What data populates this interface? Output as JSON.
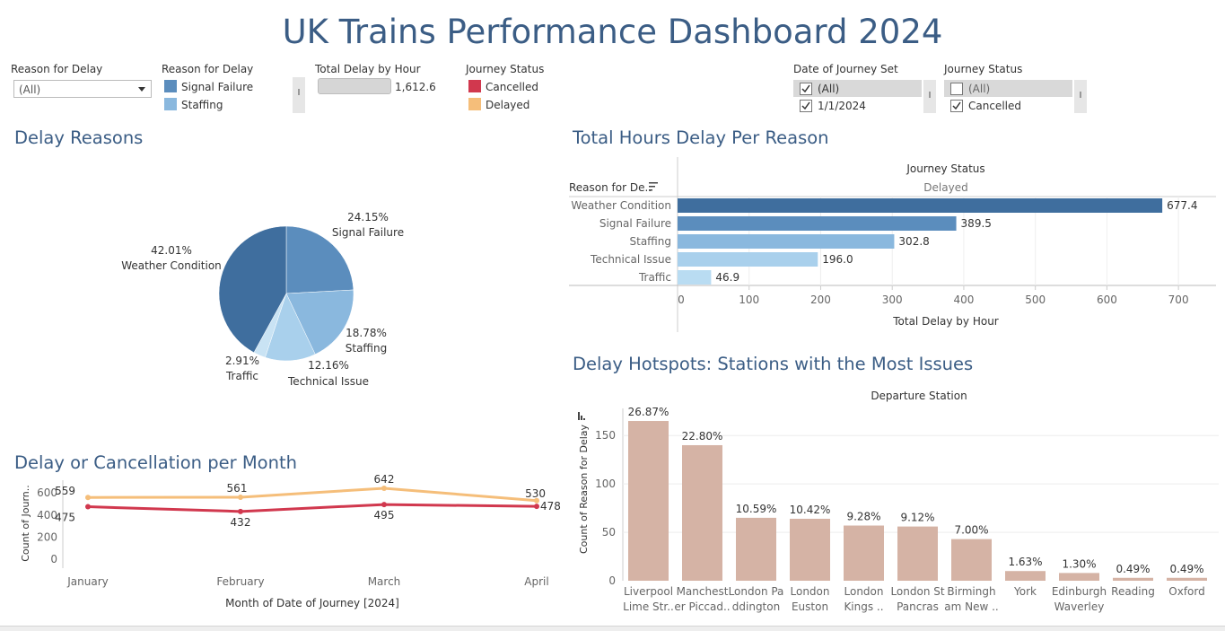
{
  "title": "UK Trains Performance Dashboard 2024",
  "filters": {
    "reason_filter": {
      "label": "Reason for Delay",
      "value": "(All)"
    },
    "reason_legend": {
      "label": "Reason for Delay",
      "items": [
        "Signal Failure",
        "Staffing"
      ],
      "colors": [
        "#5b8dbd",
        "#8ab8de"
      ]
    },
    "total_delay": {
      "label": "Total Delay by Hour",
      "value": "1,612.6"
    },
    "journey_status_legend": {
      "label": "Journey Status",
      "items": [
        "Cancelled",
        "Delayed"
      ],
      "colors": [
        "#d1384e",
        "#f5be7a"
      ]
    },
    "date_set": {
      "label": "Date of Journey Set",
      "options": [
        {
          "label": "(All)",
          "checked": true
        },
        {
          "label": "1/1/2024",
          "checked": true
        }
      ]
    },
    "journey_status_filter": {
      "label": "Journey Status",
      "options": [
        {
          "label": "(All)",
          "checked": false
        },
        {
          "label": "Cancelled",
          "checked": true
        }
      ]
    }
  },
  "sections": {
    "delay_reasons": "Delay Reasons",
    "hours_per_reason": "Total Hours Delay Per Reason",
    "per_month": "Delay or Cancellation per Month",
    "hotspots": "Delay Hotspots: Stations with the Most Issues"
  },
  "chart_data": [
    {
      "type": "pie",
      "title": "Delay Reasons",
      "slices": [
        {
          "label": "Signal Failure",
          "value": 24.15,
          "value_label": "24.15%",
          "color": "#5b8dbd"
        },
        {
          "label": "Staffing",
          "value": 18.78,
          "value_label": "18.78%",
          "color": "#8ab8de"
        },
        {
          "label": "Technical Issue",
          "value": 12.16,
          "value_label": "12.16%",
          "color": "#a9d0ec"
        },
        {
          "label": "Traffic",
          "value": 2.91,
          "value_label": "2.91%",
          "color": "#c9e3f4"
        },
        {
          "label": "Weather Condition",
          "value": 42.01,
          "value_label": "42.01%",
          "color": "#3f6e9e"
        }
      ]
    },
    {
      "type": "bar",
      "orientation": "horizontal",
      "title": "Total Hours Delay Per Reason",
      "header_label": "Journey Status",
      "header_value": "Delayed",
      "row_label": "Reason for De..",
      "xlabel": "Total Delay by Hour",
      "categories": [
        "Weather Condition",
        "Signal Failure",
        "Staffing",
        "Technical Issue",
        "Traffic"
      ],
      "values": [
        677.4,
        389.5,
        302.8,
        196.0,
        46.9
      ],
      "value_labels": [
        "677.4",
        "389.5",
        "302.8",
        "196.0",
        "46.9"
      ],
      "colors": [
        "#3f6e9e",
        "#5b8dbd",
        "#8ab8de",
        "#a9d0ec",
        "#b9dcf2"
      ],
      "xlim": [
        0,
        750
      ],
      "xticks": [
        0,
        100,
        200,
        300,
        400,
        500,
        600,
        700
      ],
      "grid": true
    },
    {
      "type": "line",
      "title": "Delay or Cancellation per Month",
      "xlabel": "Month of Date of Journey [2024]",
      "ylabel": "Count of Journ..",
      "x": [
        "January",
        "February",
        "March",
        "April"
      ],
      "ylim": [
        0,
        650
      ],
      "yticks": [
        0,
        200,
        400,
        600
      ],
      "series": [
        {
          "name": "Delayed",
          "values": [
            559,
            561,
            642,
            530
          ],
          "color": "#f5be7a"
        },
        {
          "name": "Cancelled",
          "values": [
            475,
            432,
            495,
            478
          ],
          "color": "#d1384e"
        }
      ]
    },
    {
      "type": "bar",
      "title": "Delay Hotspots: Stations with the Most Issues",
      "header_label": "Departure Station",
      "ylabel": "Count of Reason for Delay",
      "categories": [
        [
          "Liverpool",
          "Lime Str.."
        ],
        [
          "Manchest",
          "er Piccad.."
        ],
        [
          "London Pa",
          "ddington"
        ],
        [
          "London",
          "Euston"
        ],
        [
          "London",
          "Kings .."
        ],
        [
          "London St",
          "Pancras"
        ],
        [
          "Birmingh",
          "am New .."
        ],
        [
          "York",
          ""
        ],
        [
          "Edinburgh",
          "Waverley"
        ],
        [
          "Reading",
          ""
        ],
        [
          "Oxford",
          ""
        ]
      ],
      "values": [
        165,
        140,
        65,
        64,
        57,
        56,
        43,
        10,
        8,
        3,
        3
      ],
      "value_labels": [
        "26.87%",
        "22.80%",
        "10.59%",
        "10.42%",
        "9.28%",
        "9.12%",
        "7.00%",
        "1.63%",
        "1.30%",
        "0.49%",
        "0.49%"
      ],
      "color": "#d5b3a5",
      "ylim": [
        0,
        178
      ],
      "yticks": [
        0,
        50,
        100,
        150
      ],
      "grid": true
    }
  ]
}
